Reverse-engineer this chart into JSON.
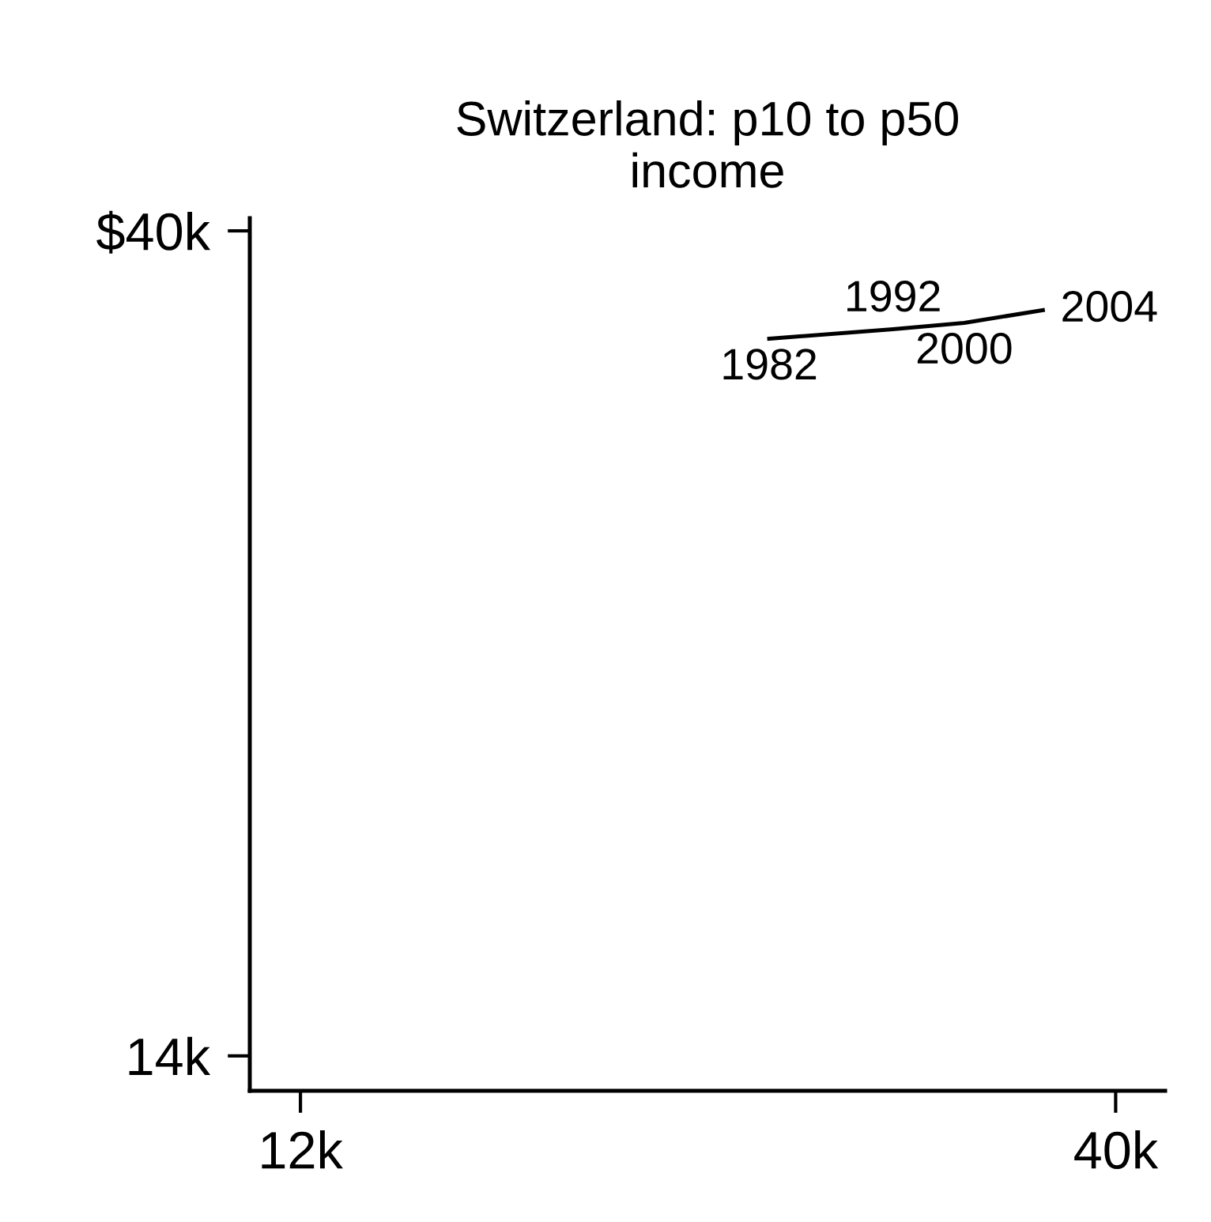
{
  "chart_data": {
    "type": "line",
    "title": "Switzerland: p10 to p50\nincome",
    "x": [
      28100,
      32350,
      34800,
      37500
    ],
    "series": [
      {
        "color": "#000000",
        "values": [
          36600,
          36900,
          37100,
          37500
        ]
      }
    ],
    "annotations": [
      {
        "text": "1982",
        "x": 28100,
        "y": 36600
      },
      {
        "text": "1992",
        "x": 32350,
        "y": 36900
      },
      {
        "text": "2000",
        "x": 34800,
        "y": 37100
      },
      {
        "text": "2004",
        "x": 37500,
        "y": 37500
      }
    ],
    "xlim": [
      10260,
      41700
    ],
    "ylim": [
      12900,
      40400
    ],
    "xticks": [
      {
        "value": 12000,
        "label": "12k"
      },
      {
        "value": 40000,
        "label": "40k"
      }
    ],
    "yticks": [
      {
        "value": 14000,
        "label": "14k"
      },
      {
        "value": 40000,
        "label": "$40k"
      }
    ],
    "grid": false,
    "legend": false,
    "marker": "none",
    "line_style": "solid"
  }
}
